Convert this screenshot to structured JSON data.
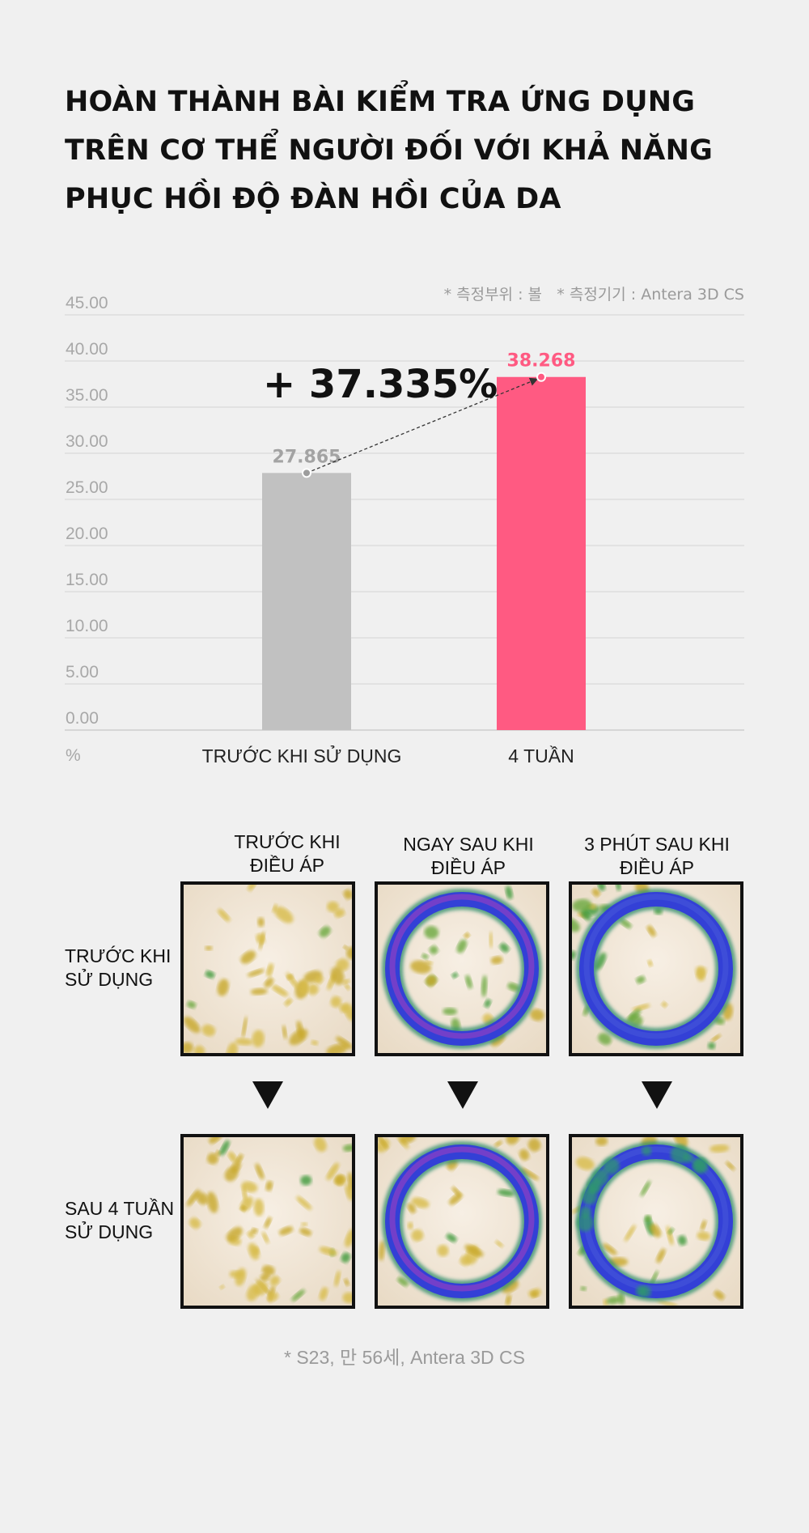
{
  "title_lines": [
    "HOÀN THÀNH BÀI KIỂM TRA ỨNG DỤNG",
    "TRÊN CƠ THỂ NGƯỜI ĐỐI VỚI KHẢ NĂNG",
    "PHỤC HỒI ĐỘ ĐÀN HỒI CỦA DA"
  ],
  "chart_data": {
    "type": "bar",
    "categories": [
      "TRƯỚC KHI SỬ DỤNG",
      "4 TUẦN"
    ],
    "values": [
      27.865,
      38.268
    ],
    "value_labels": [
      "27.865",
      "38.268"
    ],
    "bar_colors": [
      "#c1c1c1",
      "#ff5a82"
    ],
    "ylim": [
      0,
      45
    ],
    "yticks": [
      "0.00",
      "5.00",
      "10.00",
      "15.00",
      "20.00",
      "25.00",
      "30.00",
      "35.00",
      "40.00",
      "45.00"
    ],
    "ytick_values": [
      0,
      5,
      10,
      15,
      20,
      25,
      30,
      35,
      40,
      45
    ],
    "unit_label": "%",
    "grid": true,
    "annotation": "+ 37.335%",
    "notes": [
      "* 측정부위 : 볼",
      "* 측정기기 : Antera 3D CS"
    ]
  },
  "comparison": {
    "columns": [
      {
        "line1": "TRƯỚC KHI",
        "line2": "ĐIỀU ÁP"
      },
      {
        "line1": "NGAY SAU KHI",
        "line2": "ĐIỀU ÁP"
      },
      {
        "line1": "3 PHÚT SAU KHI",
        "line2": "ĐIỀU ÁP"
      }
    ],
    "rows": [
      {
        "line1": "TRƯỚC KHI",
        "line2": "SỬ DỤNG"
      },
      {
        "line1": "SAU 4 TUẦN",
        "line2": "SỬ DỤNG"
      }
    ]
  },
  "footnote": "* S23, 만 56세, Antera 3D CS",
  "colors": {
    "background": "#f0f0f0",
    "accent": "#ff5a82",
    "bar_before": "#c1c1c1"
  }
}
